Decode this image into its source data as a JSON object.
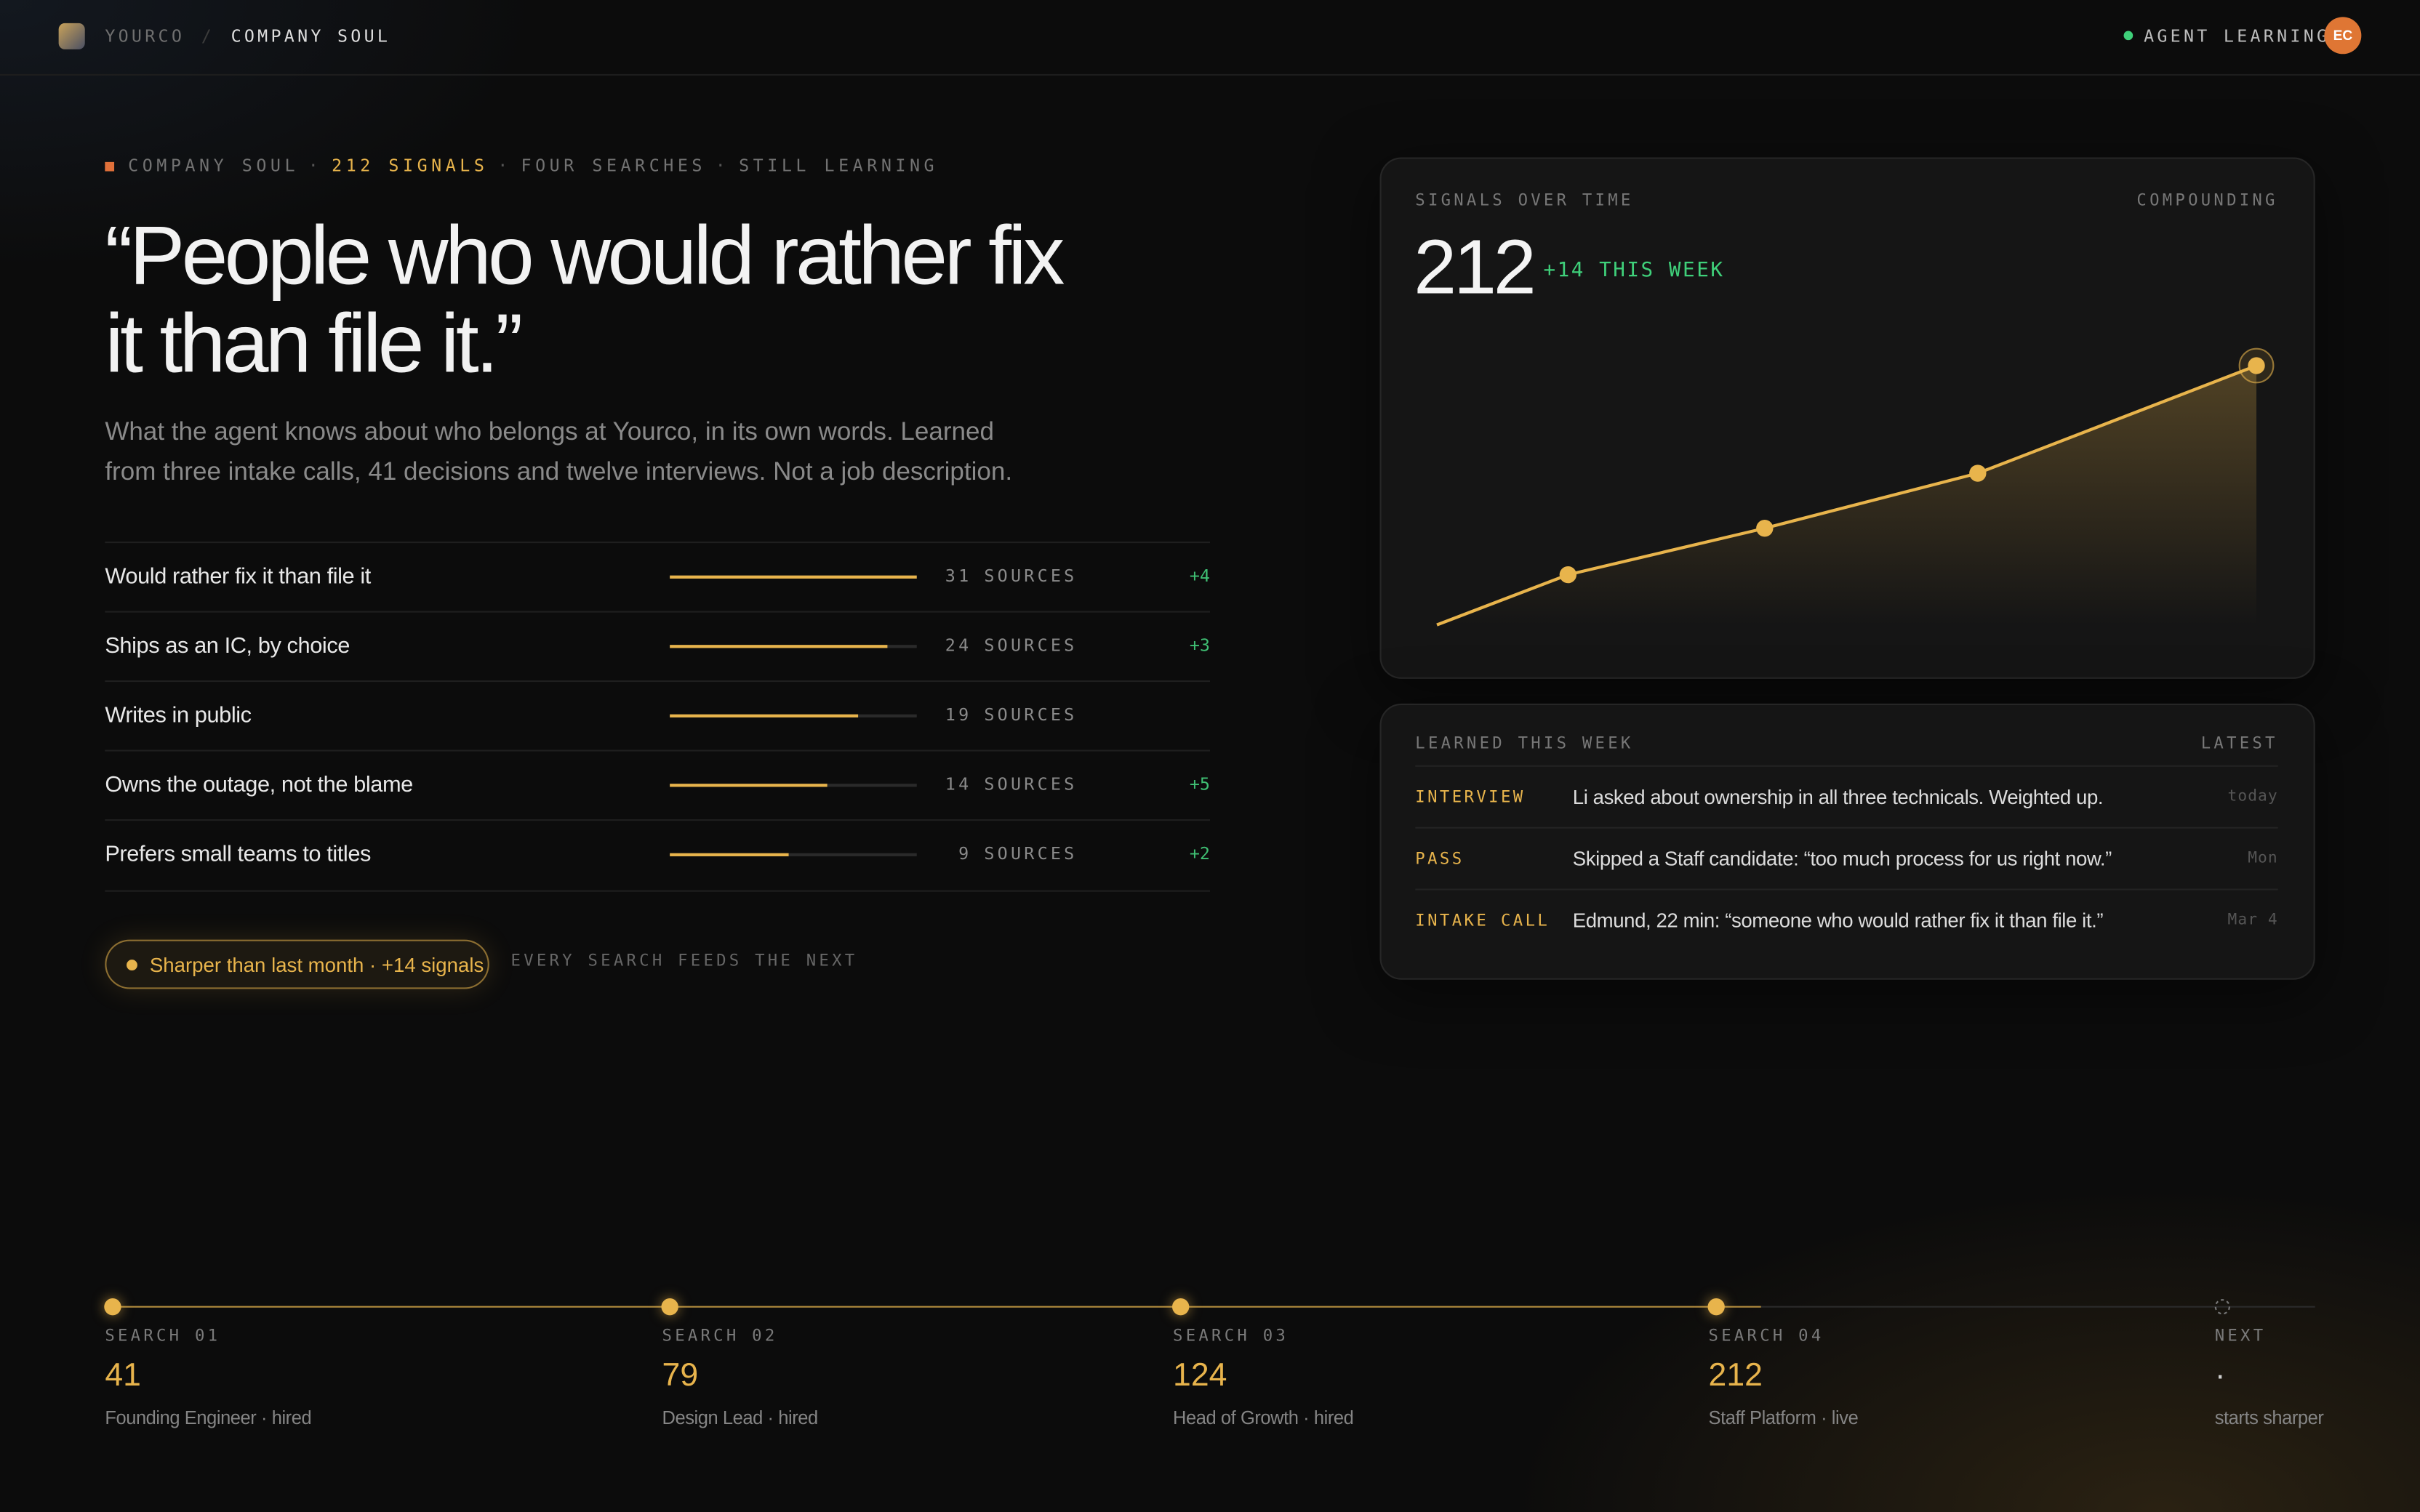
{
  "nav": {
    "brand": "YOURCO",
    "separator": "/",
    "page": "COMPANY SOUL",
    "status": "AGENT LEARNING",
    "avatar": "EC"
  },
  "hero": {
    "eyebrow": [
      "COMPANY SOUL",
      "212 SIGNALS",
      "FOUR SEARCHES",
      "STILL LEARNING"
    ],
    "eyebrow_separator": "·",
    "quote": "“People who would rather fix it than file it.”",
    "description": "What the agent knows about who belongs at Yourco, in its own words. Learned from three intake calls, 41 decisions and twelve interviews. Not a job description."
  },
  "traits": {
    "unit": "SOURCES",
    "strength_max": 100,
    "rows": [
      {
        "name": "Would rather fix it than file it",
        "sources": 31,
        "strength": 100,
        "delta": "+4"
      },
      {
        "name": "Ships as an IC, by choice",
        "sources": 24,
        "strength": 88,
        "delta": "+3"
      },
      {
        "name": "Writes in public",
        "sources": 19,
        "strength": 76,
        "delta": null
      },
      {
        "name": "Owns the outage, not the blame",
        "sources": 14,
        "strength": 64,
        "delta": "+5"
      },
      {
        "name": "Prefers small teams to titles",
        "sources": 9,
        "strength": 48,
        "delta": "+2"
      }
    ]
  },
  "pill": {
    "text": "Sharper than last month · +14 signals",
    "caption": "EVERY SEARCH FEEDS THE NEXT"
  },
  "chart_data": {
    "type": "line",
    "title": "SIGNALS OVER TIME",
    "tag": "COMPOUNDING",
    "headline": 212,
    "headline_delta": "+14 THIS WEEK",
    "x": [
      0,
      16,
      40,
      66,
      100
    ],
    "xlim": [
      0,
      100
    ],
    "values": [
      0,
      41,
      79,
      124,
      212
    ],
    "ylim": [
      0,
      212
    ],
    "color": "#e8b44c"
  },
  "learned": {
    "title": "LEARNED THIS WEEK",
    "tag": "LATEST",
    "rows": [
      {
        "type": "INTERVIEW",
        "text": "Li asked about ownership in all three technicals. Weighted up.",
        "date": "today"
      },
      {
        "type": "PASS",
        "text": "Skipped a Staff candidate: “too much process for us right now.”",
        "date": "Mon"
      },
      {
        "type": "INTAKE CALL",
        "text": "Edmund, 22 min: “someone who would rather fix it than file it.”",
        "date": "Mar 4"
      }
    ]
  },
  "timeline": [
    {
      "label": "SEARCH 01",
      "value": 41,
      "note": "Founding Engineer · hired"
    },
    {
      "label": "SEARCH 02",
      "value": 79,
      "note": "Design Lead · hired"
    },
    {
      "label": "SEARCH 03",
      "value": 124,
      "note": "Head of Growth · hired"
    },
    {
      "label": "SEARCH 04",
      "value": 212,
      "note": "Staff Platform · live"
    },
    {
      "label": "NEXT",
      "value": "·",
      "note": "starts sharper"
    }
  ]
}
